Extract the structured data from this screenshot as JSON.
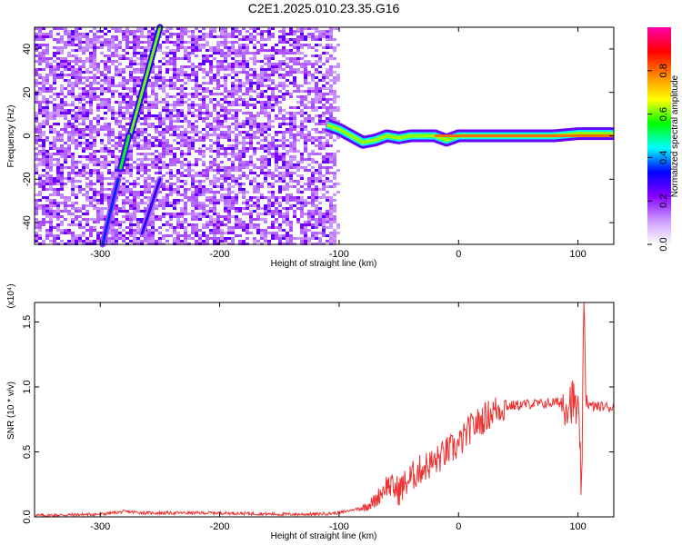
{
  "title": "C2E1.2025.010.23.35.G16",
  "chart_data": [
    {
      "type": "heatmap",
      "name": "spectrogram",
      "xlabel": "Height of straight line (km)",
      "ylabel": "Frequency (Hz)",
      "xlim": [
        -355,
        130
      ],
      "ylim": [
        -50,
        50
      ],
      "xticks": [
        -300,
        -200,
        -100,
        0,
        100
      ],
      "yticks": [
        -40,
        -20,
        0,
        20,
        40
      ],
      "colorbar": {
        "label": "Normalized spectral amplitude",
        "range": [
          0,
          1
        ],
        "ticks": [
          0.0,
          0.2,
          0.4,
          0.6,
          0.8
        ],
        "tick_labels": [
          "0.0",
          "0.2",
          "0.4",
          "0.6",
          "0.8"
        ],
        "colors": [
          "#ffffff",
          "#cc99ff",
          "#8800ff",
          "#0000ff",
          "#00ffff",
          "#00ff00",
          "#ffff00",
          "#ff8800",
          "#ff0000",
          "#ff00aa"
        ]
      },
      "noise_region": {
        "x_from": -355,
        "x_to": -95,
        "level": "low"
      },
      "signal_track": [
        {
          "x": -110,
          "y": 5
        },
        {
          "x": -100,
          "y": 3
        },
        {
          "x": -90,
          "y": 0
        },
        {
          "x": -80,
          "y": -3
        },
        {
          "x": -70,
          "y": -2
        },
        {
          "x": -60,
          "y": 0
        },
        {
          "x": -50,
          "y": -1
        },
        {
          "x": -40,
          "y": 0
        },
        {
          "x": -30,
          "y": 0
        },
        {
          "x": -20,
          "y": 0
        },
        {
          "x": -10,
          "y": -2
        },
        {
          "x": 0,
          "y": 0
        },
        {
          "x": 20,
          "y": 0
        },
        {
          "x": 40,
          "y": 0
        },
        {
          "x": 60,
          "y": 0
        },
        {
          "x": 80,
          "y": 0
        },
        {
          "x": 100,
          "y": 1
        },
        {
          "x": 130,
          "y": 1
        }
      ],
      "streaks": [
        {
          "x1": -275,
          "y1": 0,
          "x2": -250,
          "y2": 50,
          "strength": 0.6
        },
        {
          "x1": -283,
          "y1": -15,
          "x2": -276,
          "y2": 0,
          "strength": 0.55
        },
        {
          "x1": -298,
          "y1": -50,
          "x2": -285,
          "y2": -20,
          "strength": 0.35
        },
        {
          "x1": -265,
          "y1": -45,
          "x2": -250,
          "y2": -20,
          "strength": 0.3
        }
      ]
    },
    {
      "type": "line",
      "name": "snr",
      "xlabel": "Height of straight line (km)",
      "ylabel": "SNR (10 * v/v)",
      "y_multiplier": "(x10⁴)",
      "xlim": [
        -355,
        130
      ],
      "ylim": [
        0,
        1.65
      ],
      "xticks": [
        -300,
        -200,
        -100,
        0,
        100
      ],
      "yticks": [
        0.0,
        0.5,
        1.0,
        1.5
      ],
      "ytick_labels": [
        "0.0",
        "0.5",
        "1.0",
        "1.5"
      ],
      "color": "#ee3333",
      "series": [
        {
          "x": [
            -355,
            -300,
            -280,
            -260,
            -240,
            -200,
            -150,
            -120,
            -100,
            -80,
            -70,
            -60,
            -50,
            -40,
            -30,
            -20,
            -10,
            0,
            10,
            20,
            30,
            40,
            50,
            60,
            70,
            80,
            90,
            95,
            100,
            103,
            105,
            107,
            110,
            120,
            130
          ],
          "y": [
            0.01,
            0.02,
            0.04,
            0.03,
            0.03,
            0.03,
            0.02,
            0.02,
            0.03,
            0.07,
            0.12,
            0.25,
            0.2,
            0.3,
            0.38,
            0.42,
            0.5,
            0.55,
            0.68,
            0.75,
            0.82,
            0.85,
            0.86,
            0.87,
            0.87,
            0.88,
            0.88,
            0.9,
            0.8,
            0.2,
            1.6,
            0.9,
            0.85,
            0.85,
            0.84
          ]
        }
      ]
    }
  ]
}
